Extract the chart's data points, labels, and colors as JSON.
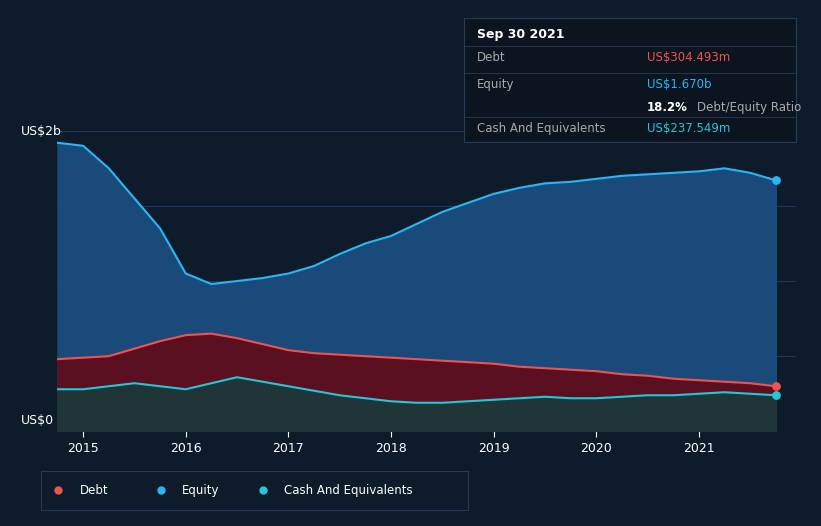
{
  "bg_color": "#0d1b2a",
  "plot_bg_color": "#0d1b2a",
  "title_box": {
    "date": "Sep 30 2021",
    "debt_label": "Debt",
    "debt_value": "US$304.493m",
    "equity_label": "Equity",
    "equity_value": "US$1.670b",
    "ratio_value": "18.2%",
    "ratio_label": "Debt/Equity Ratio",
    "cash_label": "Cash And Equivalents",
    "cash_value": "US$237.549m"
  },
  "y_label_top": "US$2b",
  "y_label_bottom": "US$0",
  "x_ticks": [
    2015,
    2016,
    2017,
    2018,
    2019,
    2020,
    2021
  ],
  "equity_color": "#29b6f6",
  "debt_color": "#ef5350",
  "cash_color": "#26c6da",
  "equity_fill": "#1a4a7a",
  "debt_fill": "#5a1020",
  "cash_fill": "#1a3a3a",
  "grid_color": "#1e3a5f",
  "separator_color": "#2a3a5a",
  "equity_data": {
    "x": [
      2014.75,
      2015.0,
      2015.25,
      2015.5,
      2015.75,
      2016.0,
      2016.25,
      2016.5,
      2016.75,
      2017.0,
      2017.25,
      2017.5,
      2017.75,
      2018.0,
      2018.25,
      2018.5,
      2018.75,
      2019.0,
      2019.25,
      2019.5,
      2019.75,
      2020.0,
      2020.25,
      2020.5,
      2020.75,
      2021.0,
      2021.25,
      2021.5,
      2021.75
    ],
    "y": [
      1.92,
      1.9,
      1.75,
      1.55,
      1.35,
      1.05,
      0.98,
      1.0,
      1.02,
      1.05,
      1.1,
      1.18,
      1.25,
      1.3,
      1.38,
      1.46,
      1.52,
      1.58,
      1.62,
      1.65,
      1.66,
      1.68,
      1.7,
      1.71,
      1.72,
      1.73,
      1.75,
      1.72,
      1.67
    ]
  },
  "debt_data": {
    "x": [
      2014.75,
      2015.0,
      2015.25,
      2015.5,
      2015.75,
      2016.0,
      2016.25,
      2016.5,
      2016.75,
      2017.0,
      2017.25,
      2017.5,
      2017.75,
      2018.0,
      2018.25,
      2018.5,
      2018.75,
      2019.0,
      2019.25,
      2019.5,
      2019.75,
      2020.0,
      2020.25,
      2020.5,
      2020.75,
      2021.0,
      2021.25,
      2021.5,
      2021.75
    ],
    "y": [
      0.48,
      0.49,
      0.5,
      0.55,
      0.6,
      0.64,
      0.65,
      0.62,
      0.58,
      0.54,
      0.52,
      0.51,
      0.5,
      0.49,
      0.48,
      0.47,
      0.46,
      0.45,
      0.43,
      0.42,
      0.41,
      0.4,
      0.38,
      0.37,
      0.35,
      0.34,
      0.33,
      0.32,
      0.3
    ]
  },
  "cash_data": {
    "x": [
      2014.75,
      2015.0,
      2015.25,
      2015.5,
      2015.75,
      2016.0,
      2016.25,
      2016.5,
      2016.75,
      2017.0,
      2017.25,
      2017.5,
      2017.75,
      2018.0,
      2018.25,
      2018.5,
      2018.75,
      2019.0,
      2019.25,
      2019.5,
      2019.75,
      2020.0,
      2020.25,
      2020.5,
      2020.75,
      2021.0,
      2021.25,
      2021.5,
      2021.75
    ],
    "y": [
      0.28,
      0.28,
      0.3,
      0.32,
      0.3,
      0.28,
      0.32,
      0.36,
      0.33,
      0.3,
      0.27,
      0.24,
      0.22,
      0.2,
      0.19,
      0.19,
      0.2,
      0.21,
      0.22,
      0.23,
      0.22,
      0.22,
      0.23,
      0.24,
      0.24,
      0.25,
      0.26,
      0.25,
      0.24
    ]
  }
}
